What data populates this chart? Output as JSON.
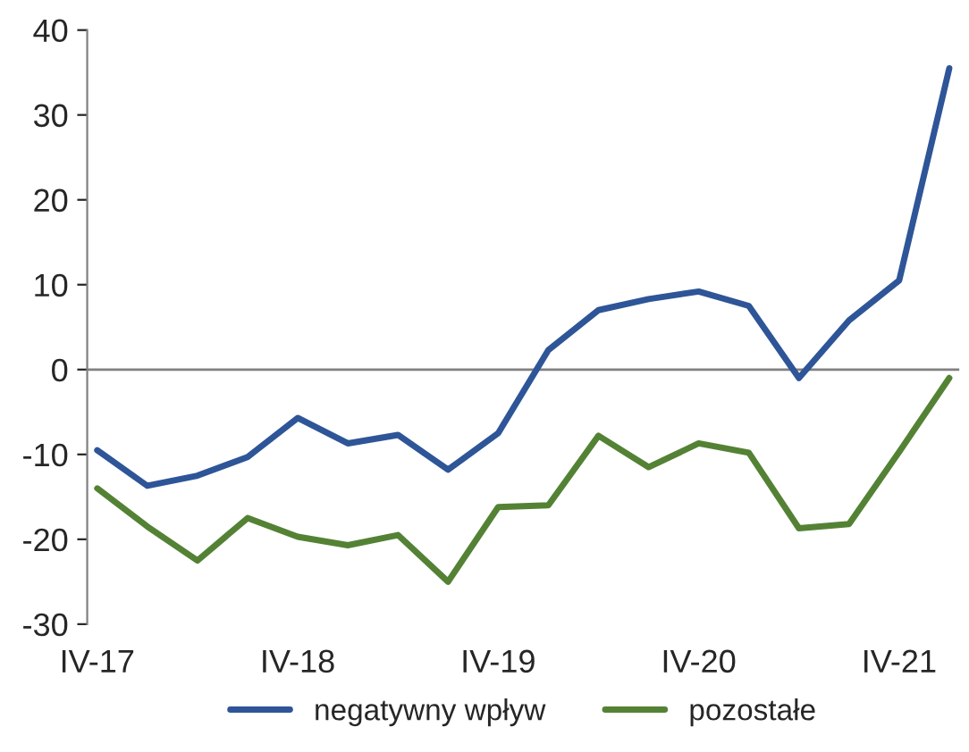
{
  "chart_data": {
    "type": "line",
    "categories": [
      "IV-17",
      null,
      null,
      null,
      "IV-18",
      null,
      null,
      null,
      "IV-19",
      null,
      null,
      null,
      "IV-20",
      null,
      null,
      null,
      "IV-21",
      null
    ],
    "series": [
      {
        "name": "negatywny wpływ",
        "color": "#2e5597",
        "values": [
          -9.5,
          -13.7,
          -12.5,
          -10.3,
          -5.7,
          -8.7,
          -7.7,
          -11.8,
          -7.5,
          2.3,
          7,
          8.3,
          9.2,
          7.5,
          -1,
          5.8,
          10.5,
          35.5
        ]
      },
      {
        "name": "pozostałe",
        "color": "#548235",
        "values": [
          -14,
          -18.5,
          -22.5,
          -17.5,
          -19.7,
          -20.7,
          -19.5,
          -25,
          -16.2,
          -16,
          -7.8,
          -11.5,
          -8.7,
          -9.8,
          -18.7,
          -18.2,
          -9.7,
          -1
        ]
      }
    ],
    "ylim": [
      -30,
      40
    ],
    "yticks": [
      -30,
      -20,
      -10,
      0,
      10,
      20,
      30,
      40
    ],
    "ref_lines": [
      {
        "axis": "y",
        "value": 0,
        "color": "#808080"
      }
    ],
    "grid": false,
    "legend": "bottom",
    "marker": "none",
    "line_style": "solid"
  }
}
